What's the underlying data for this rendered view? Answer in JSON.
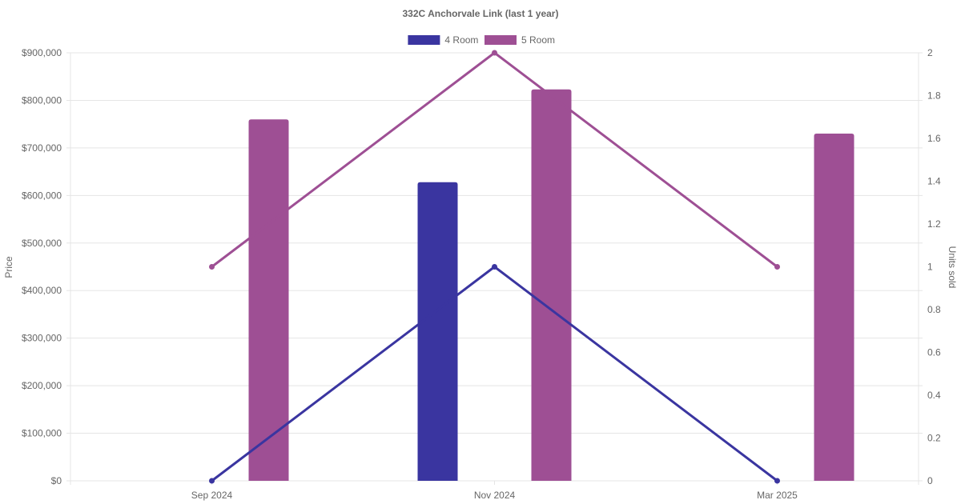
{
  "chart_data": {
    "type": "bar",
    "title": "332C Anchorvale Link (last 1 year)",
    "categories": [
      "Sep 2024",
      "Nov 2024",
      "Mar 2025"
    ],
    "legend_position": "top",
    "grid": true,
    "y_left": {
      "label": "Price",
      "ylim": [
        0,
        900000
      ],
      "ticks": [
        "$0",
        "$100,000",
        "$200,000",
        "$300,000",
        "$400,000",
        "$500,000",
        "$600,000",
        "$700,000",
        "$800,000",
        "$900,000"
      ]
    },
    "y_right": {
      "label": "Units sold",
      "ylim": [
        0,
        2
      ],
      "ticks": [
        "0",
        "0.2",
        "0.4",
        "0.6",
        "0.8",
        "1",
        "1.2",
        "1.4",
        "1.6",
        "1.8",
        "2"
      ]
    },
    "series": [
      {
        "name": "4 Room",
        "color": "#3a35a0",
        "price": [
          null,
          628000,
          null
        ],
        "units_sold": [
          0,
          1,
          0
        ]
      },
      {
        "name": "5 Room",
        "color": "#9e4f94",
        "price": [
          760000,
          823000,
          730000
        ],
        "units_sold": [
          1,
          2,
          1
        ]
      }
    ]
  }
}
